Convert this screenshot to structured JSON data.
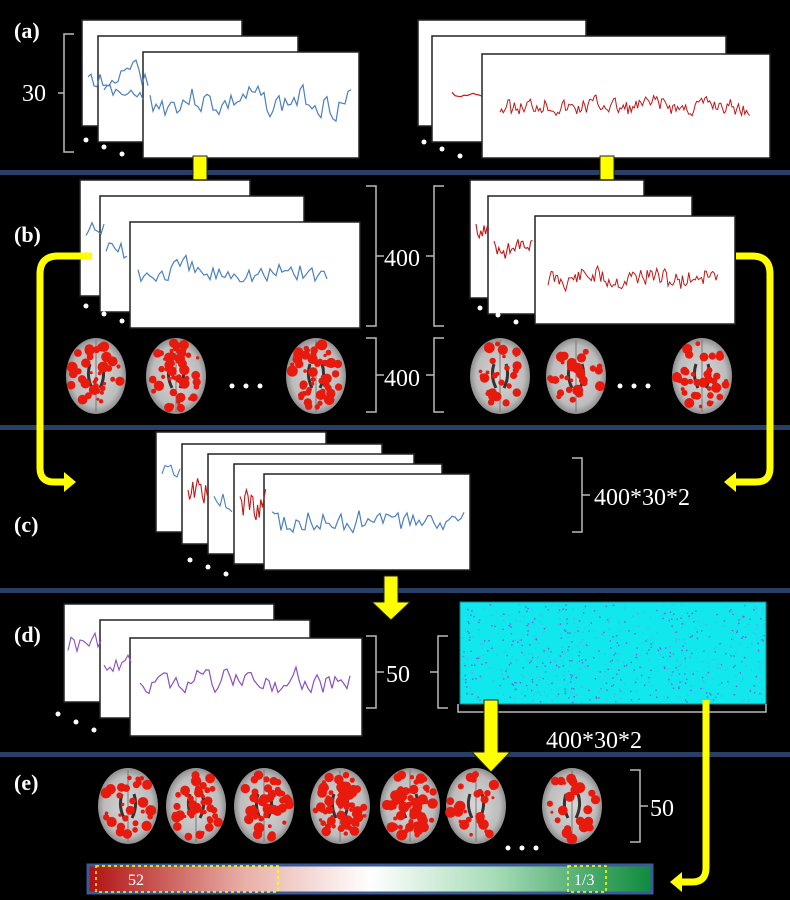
{
  "panels": {
    "a": "(a)",
    "b": "(b)",
    "c": "(c)",
    "d": "(d)",
    "e": "(e)"
  },
  "dimensions": {
    "a_count": "30",
    "b_signals": "400",
    "b_maps": "400",
    "c_total": "400*30*2",
    "d_components": "50",
    "d_matrix_width": "400*30*2",
    "e_maps": "50"
  },
  "colorbar": {
    "left_value": "52",
    "right_value": "1/3"
  },
  "colors": {
    "background": "#000000",
    "separator": "#2a3f66",
    "arrow": "#ffff00",
    "blue_signal": "#4a7fc1",
    "red_signal": "#c01818",
    "purple_signal": "#8a4fc0",
    "matrix_fill": "#10e8ee",
    "brain_activation": "#e81a0e"
  }
}
